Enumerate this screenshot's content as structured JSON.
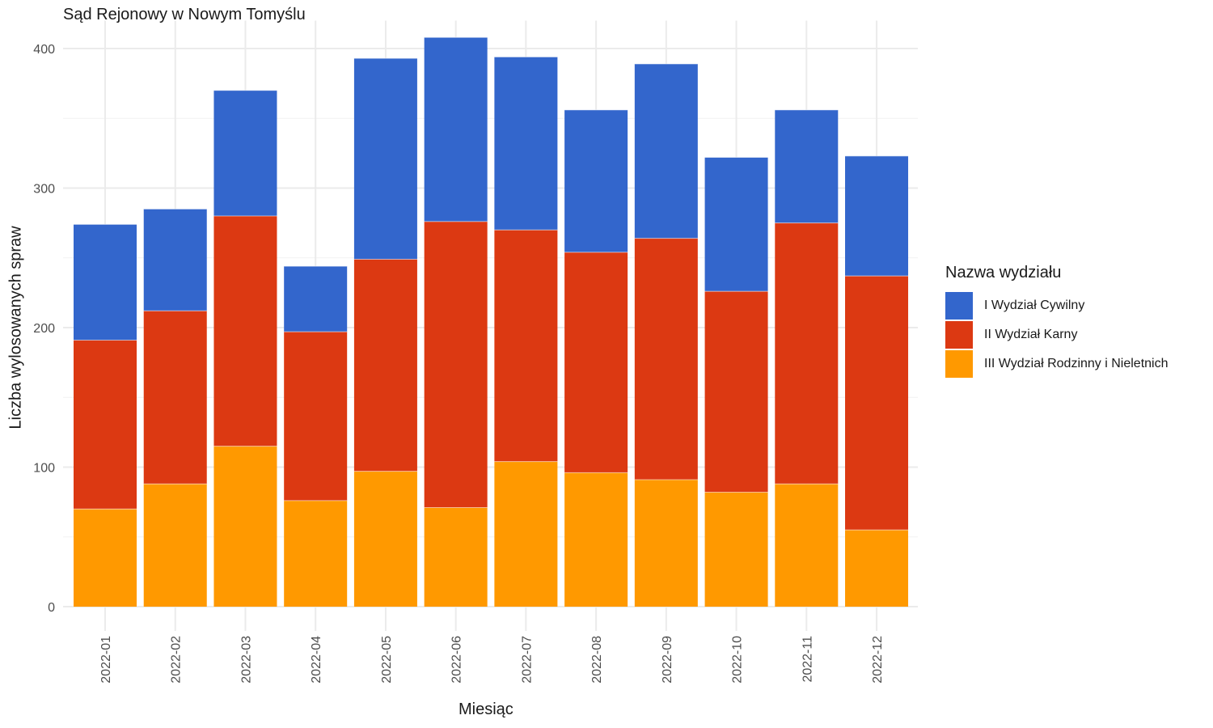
{
  "chart_data": {
    "type": "bar",
    "stacked": true,
    "title": "Sąd Rejonowy w Nowym Tomyślu",
    "xlabel": "Miesiąc",
    "ylabel": "Liczba wylosowanych spraw",
    "ylim": [
      0,
      420
    ],
    "yticks": [
      0,
      100,
      200,
      300,
      400
    ],
    "grid": true,
    "legend_position": "right",
    "legend_title": "Nazwa wydziału",
    "categories": [
      "2022-01",
      "2022-02",
      "2022-03",
      "2022-04",
      "2022-05",
      "2022-06",
      "2022-07",
      "2022-08",
      "2022-09",
      "2022-10",
      "2022-11",
      "2022-12"
    ],
    "series": [
      {
        "name": "III Wydział Rodzinny i Nieletnich",
        "color": "#ff9900",
        "values": [
          70,
          88,
          115,
          76,
          97,
          71,
          104,
          96,
          91,
          82,
          88,
          55
        ]
      },
      {
        "name": "II Wydział Karny",
        "color": "#dc3912",
        "values": [
          121,
          124,
          165,
          121,
          152,
          205,
          166,
          158,
          173,
          144,
          187,
          182
        ]
      },
      {
        "name": "I Wydział Cywilny",
        "color": "#3366cc",
        "values": [
          83,
          73,
          90,
          47,
          144,
          132,
          124,
          102,
          125,
          96,
          81,
          86
        ]
      }
    ],
    "legend_order": [
      "I Wydział Cywilny",
      "II Wydział Karny",
      "III Wydział Rodzinny i Nieletnich"
    ]
  }
}
